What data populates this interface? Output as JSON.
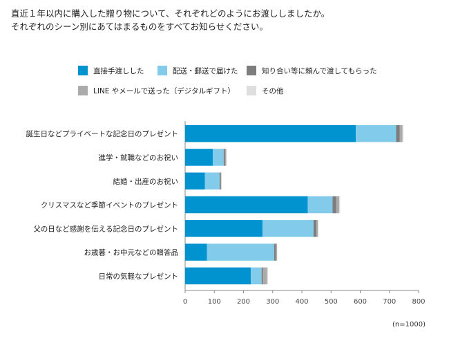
{
  "title_lines": [
    "直近１年以内に購入した贈り物について、それぞれどのようにお渡ししましたか。",
    "それぞれのシーン別にあてはまるものをすべてお知らせください。"
  ],
  "note": "(n=1000)",
  "chart_data": {
    "type": "bar",
    "orientation": "horizontal",
    "stacked": true,
    "categories": [
      "誕生日などプライベートな記念日のプレゼント",
      "進学・就職などのお祝い",
      "結婚・出産のお祝い",
      "クリスマスなど季節イベントのプレゼント",
      "父の日など感謝を伝える記念日のプレゼント",
      "お歳暮・お中元などの贈答品",
      "日常の気軽なプレゼント"
    ],
    "series": [
      {
        "name": "直接手渡しした",
        "color": "#0093d0",
        "values": [
          585,
          95,
          68,
          420,
          265,
          75,
          225
        ]
      },
      {
        "name": "配送・郵送で届けた",
        "color": "#82cbea",
        "values": [
          138,
          37,
          50,
          85,
          175,
          230,
          37
        ]
      },
      {
        "name": "知り合い等に頼んで渡してもらった",
        "color": "#7d7d7d",
        "values": [
          12,
          5,
          4,
          13,
          10,
          6,
          5
        ]
      },
      {
        "name": "LINE やメールで送った（デジタルギフト）",
        "color": "#ababab",
        "values": [
          10,
          4,
          2,
          10,
          5,
          4,
          14
        ]
      },
      {
        "name": "その他",
        "color": "#dedede",
        "values": [
          3,
          1,
          1,
          3,
          2,
          1,
          3
        ]
      }
    ],
    "x_ticks": [
      0,
      100,
      200,
      300,
      400,
      500,
      600,
      700,
      800
    ],
    "xlim": [
      0,
      800
    ],
    "grid": false
  }
}
